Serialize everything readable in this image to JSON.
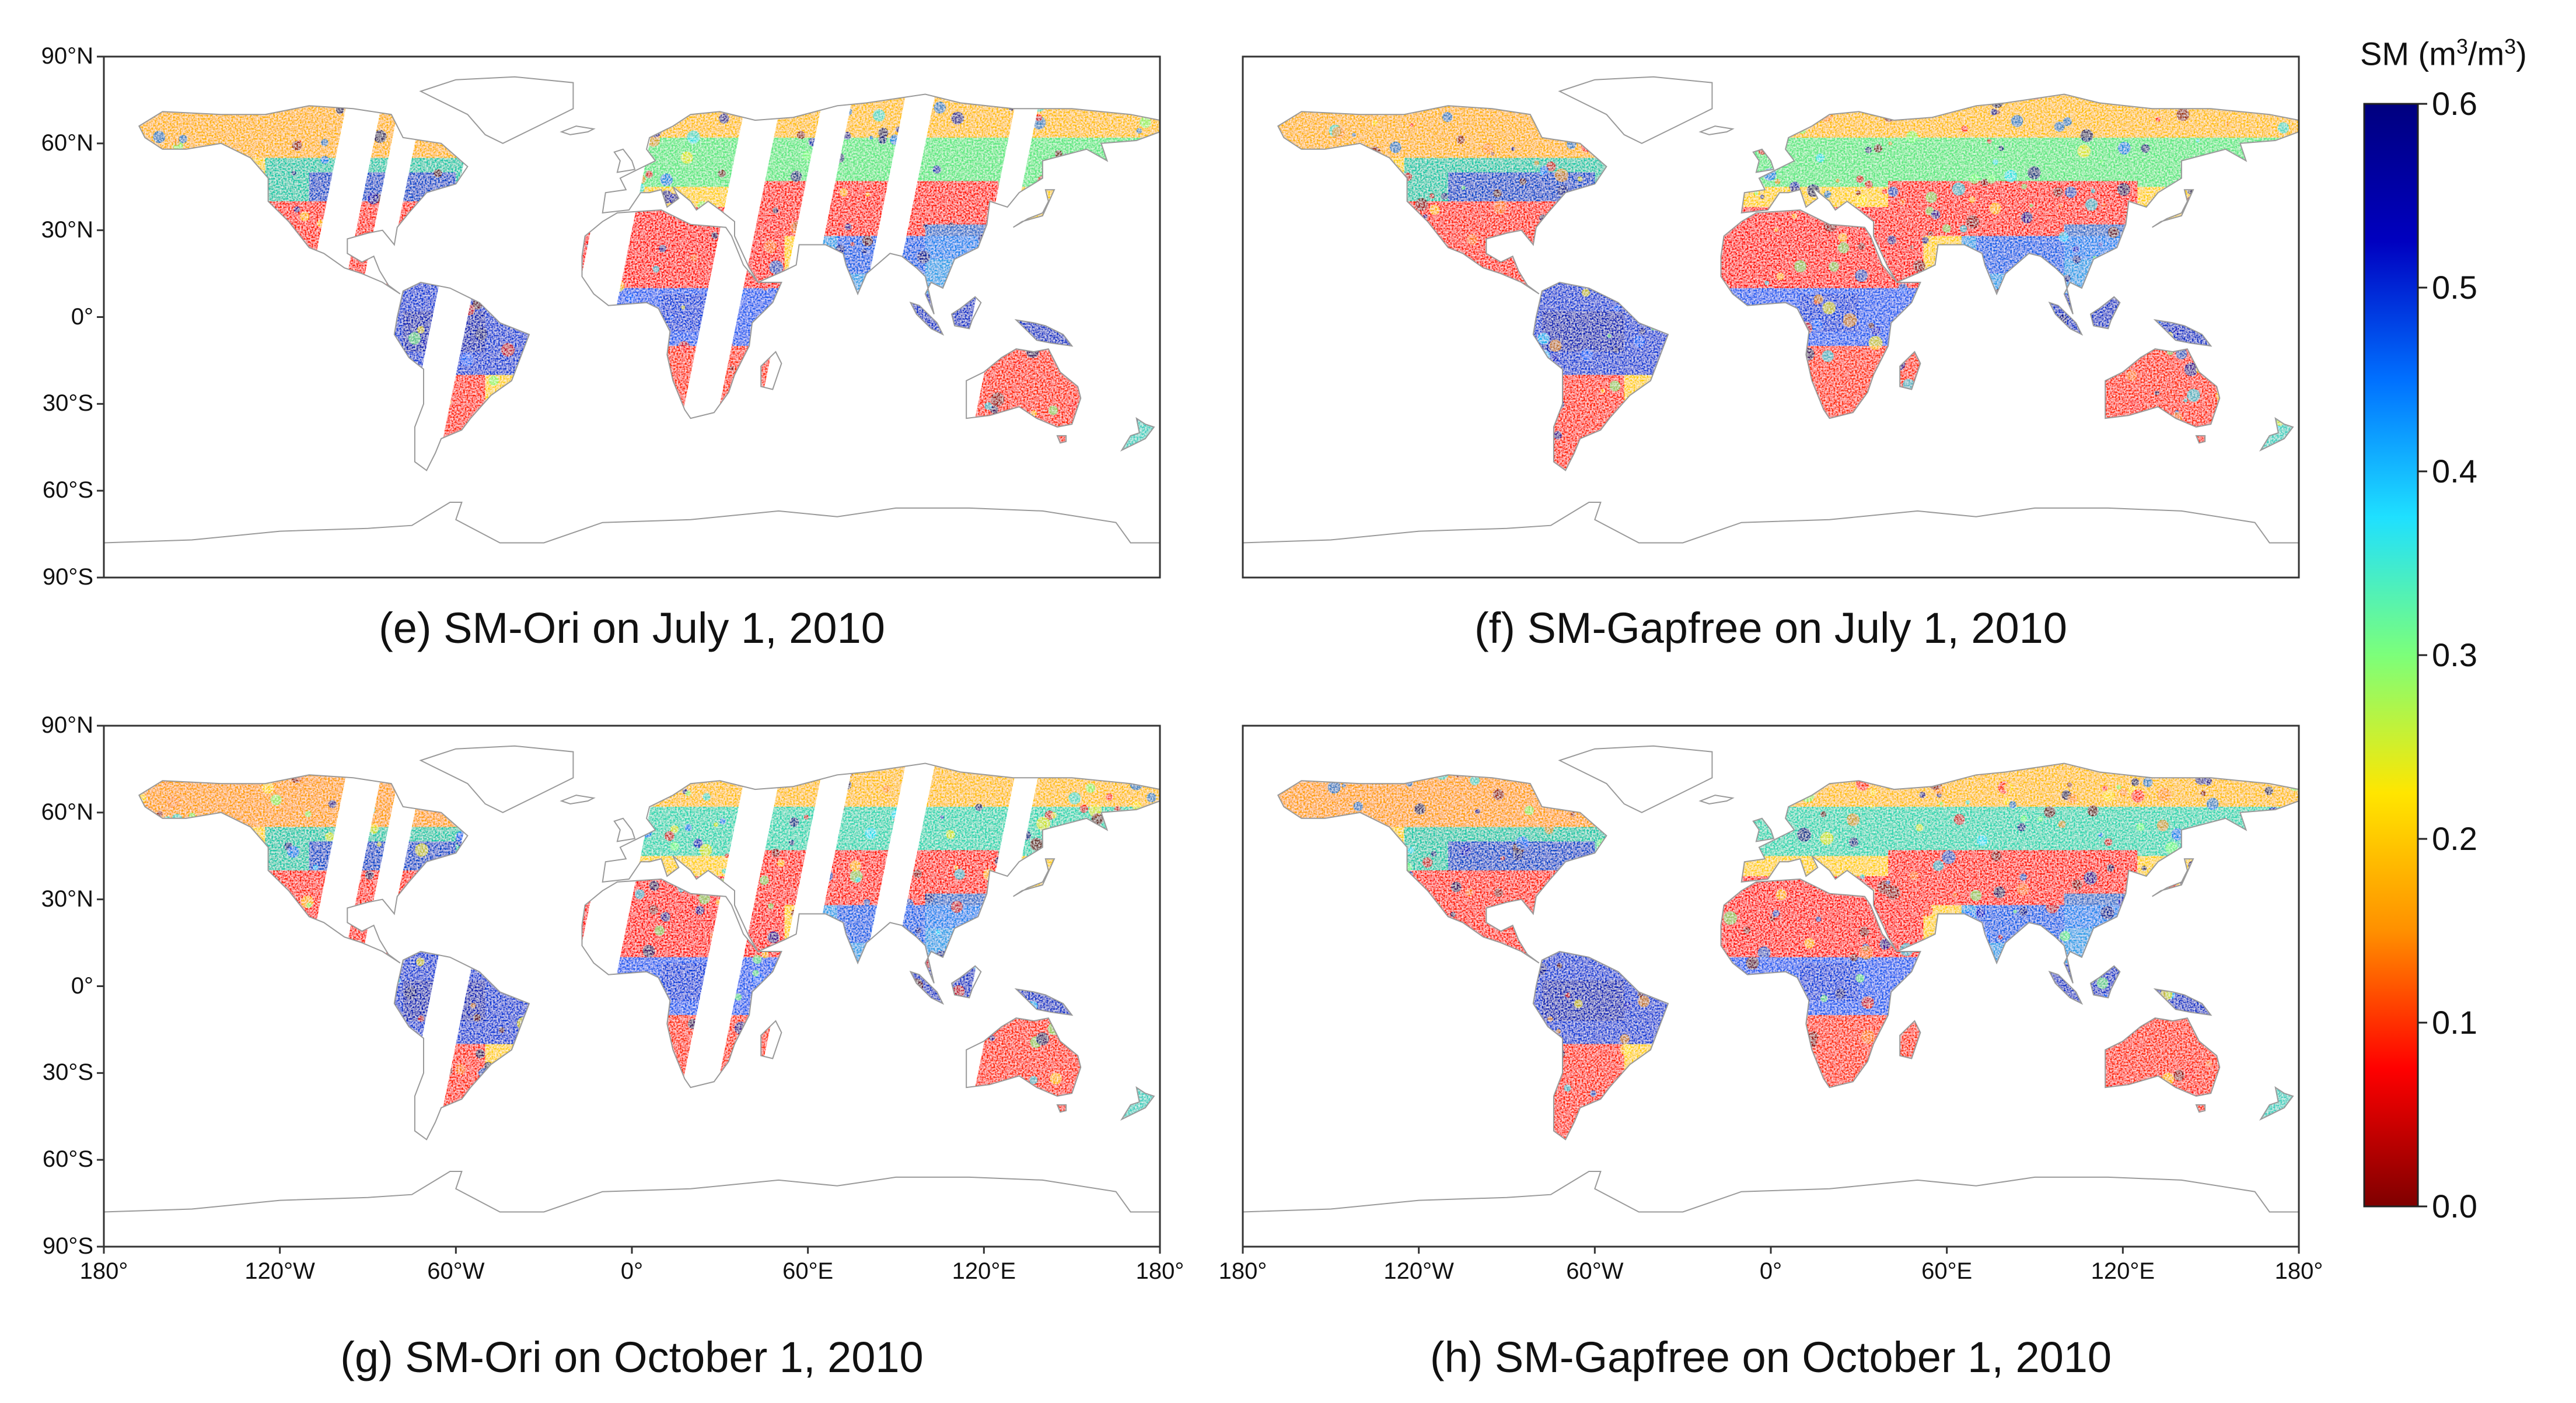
{
  "figure": {
    "colorbar": {
      "title_prefix": "SM (m",
      "title_exp1": "3",
      "title_mid": "/m",
      "title_exp2": "3",
      "title_suffix": ")",
      "min": 0.0,
      "max": 0.6,
      "ticks": [
        "0.0",
        "0.1",
        "0.2",
        "0.3",
        "0.4",
        "0.5",
        "0.6"
      ],
      "colors": [
        "#7f0000",
        "#ff0000",
        "#ff9000",
        "#ffe600",
        "#7cff7a",
        "#1fe0ff",
        "#0070ff",
        "#0000c0",
        "#00007f"
      ]
    },
    "lat_ticks": [
      "90°N",
      "60°N",
      "30°N",
      "0°",
      "30°S",
      "60°S",
      "90°S"
    ],
    "lon_ticks": [
      "180°",
      "120°W",
      "60°W",
      "0°",
      "60°E",
      "120°E",
      "180°"
    ],
    "panels": [
      {
        "id": "e",
        "caption": "(e) SM-Ori on July 1, 2010"
      },
      {
        "id": "f",
        "caption": "(f) SM-Gapfree on July 1, 2010"
      },
      {
        "id": "g",
        "caption": "(g) SM-Ori on October 1, 2010"
      },
      {
        "id": "h",
        "caption": "(h) SM-Gapfree on October 1, 2010"
      }
    ]
  },
  "chart_data": [
    {
      "type": "heatmap",
      "panel": "e",
      "title": "(e) SM-Ori on July 1, 2010",
      "variable": "SM (m3/m3)",
      "vmin": 0.0,
      "vmax": 0.6,
      "xlim": [
        -180,
        180
      ],
      "ylim": [
        -90,
        90
      ],
      "swath_gaps": true
    },
    {
      "type": "heatmap",
      "panel": "f",
      "title": "(f) SM-Gapfree on July 1, 2010",
      "variable": "SM (m3/m3)",
      "vmin": 0.0,
      "vmax": 0.6,
      "xlim": [
        -180,
        180
      ],
      "ylim": [
        -90,
        90
      ],
      "swath_gaps": false
    },
    {
      "type": "heatmap",
      "panel": "g",
      "title": "(g) SM-Ori on October 1, 2010",
      "variable": "SM (m3/m3)",
      "vmin": 0.0,
      "vmax": 0.6,
      "xlim": [
        -180,
        180
      ],
      "ylim": [
        -90,
        90
      ],
      "swath_gaps": true
    },
    {
      "type": "heatmap",
      "panel": "h",
      "title": "(h) SM-Gapfree on October 1, 2010",
      "variable": "SM (m3/m3)",
      "vmin": 0.0,
      "vmax": 0.6,
      "xlim": [
        -180,
        180
      ],
      "ylim": [
        -90,
        90
      ],
      "swath_gaps": false
    }
  ]
}
